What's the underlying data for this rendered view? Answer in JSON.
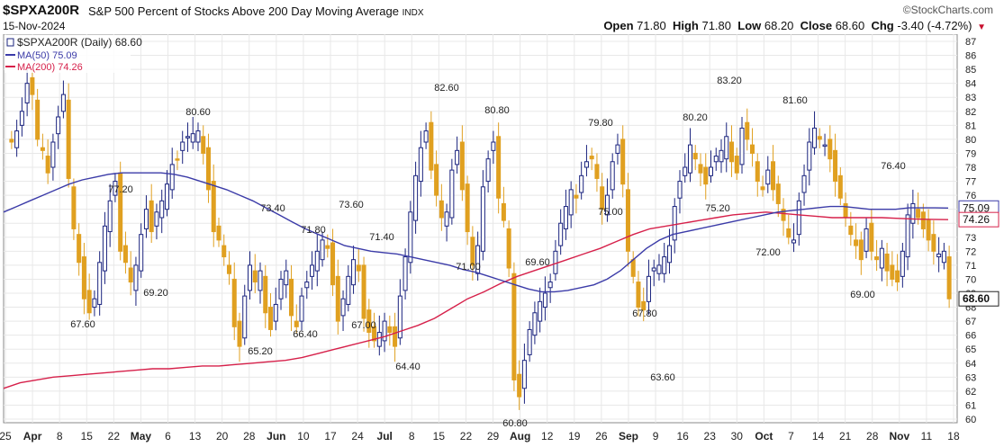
{
  "header": {
    "symbol": "$SPXA200R",
    "description": "S&P 500 Percent of Stocks Above 200 Day Moving Average",
    "exchange": "INDX",
    "date": "15-Nov-2024",
    "logo": "©StockCharts.com",
    "open_label": "Open",
    "open": "71.80",
    "high_label": "High",
    "high": "71.80",
    "low_label": "Low",
    "low": "68.20",
    "close_label": "Close",
    "close": "68.60",
    "chg_label": "Chg",
    "chg": "-3.40 (-4.72%)"
  },
  "legend": {
    "main": "$SPXA200R (Daily) 68.60",
    "ma50": "MA(50) 75.09",
    "ma200": "MA(200) 74.26"
  },
  "colors": {
    "up": "#1a237e",
    "down": "#e0a020",
    "ma50": "#3b3ba8",
    "ma200": "#d6204a",
    "grid": "#e8e8e8"
  },
  "chart_data": {
    "type": "candlestick",
    "ylim": [
      60,
      87
    ],
    "y_ticks": [
      60,
      61,
      62,
      63,
      64,
      65,
      66,
      67,
      68,
      69,
      70,
      71,
      72,
      73,
      74,
      75,
      76,
      77,
      78,
      79,
      80,
      81,
      82,
      83,
      84,
      85,
      86,
      87
    ],
    "x_tick_labels": [
      "25",
      "Apr",
      "8",
      "15",
      "22",
      "May",
      "6",
      "13",
      "20",
      "28",
      "Jun",
      "10",
      "17",
      "24",
      "Jul",
      "8",
      "15",
      "22",
      "29",
      "Aug",
      "12",
      "19",
      "26",
      "Sep",
      "9",
      "16",
      "23",
      "30",
      "Oct",
      "7",
      "14",
      "21",
      "28",
      "Nov",
      "11",
      "18"
    ],
    "last_value_label": "68.60",
    "ma50_value_label": "75.09",
    "ma200_value_label": "74.26",
    "annotations": [
      "67.60",
      "77.20",
      "69.20",
      "80.60",
      "73.40",
      "65.20",
      "71.80",
      "66.40",
      "73.60",
      "67.00",
      "71.40",
      "64.40",
      "82.60",
      "71.00",
      "80.80",
      "60.80",
      "69.60",
      "79.80",
      "75.00",
      "67.80",
      "63.60",
      "80.20",
      "75.20",
      "83.20",
      "72.00",
      "81.60",
      "76.40",
      "69.00"
    ],
    "close_series": [
      79.8,
      80.6,
      82.0,
      84.0,
      83.2,
      80.0,
      79.2,
      77.6,
      79.8,
      81.6,
      83.2,
      77.2,
      73.6,
      71.2,
      68.6,
      67.6,
      68.6,
      71.2,
      73.8,
      75.6,
      77.0,
      72.0,
      71.2,
      69.8,
      71.0,
      73.2,
      75.0,
      73.4,
      74.8,
      75.6,
      76.8,
      78.2,
      78.6,
      79.8,
      80.2,
      80.4,
      80.6,
      79.0,
      76.4,
      73.4,
      72.8,
      71.6,
      70.4,
      66.6,
      65.2,
      68.8,
      71.0,
      69.8,
      70.6,
      67.6,
      66.4,
      68.2,
      70.0,
      70.6,
      67.4,
      66.6,
      68.8,
      69.8,
      71.0,
      72.0,
      72.8,
      72.2,
      69.6,
      67.0,
      68.6,
      70.2,
      71.4,
      70.6,
      67.2,
      66.2,
      65.6,
      66.2,
      67.0,
      66.2,
      65.2,
      68.8,
      71.6,
      74.8,
      77.4,
      79.4,
      80.6,
      77.8,
      76.0,
      74.4,
      74.8,
      77.8,
      79.2,
      76.4,
      73.4,
      71.0,
      72.4,
      76.6,
      78.6,
      79.8,
      75.8,
      74.2,
      70.8,
      62.8,
      61.6,
      64.2,
      66.4,
      67.6,
      68.4,
      69.0,
      69.8,
      72.0,
      74.0,
      75.2,
      76.4,
      75.8,
      77.4,
      78.4,
      78.6,
      77.2,
      75.0,
      76.0,
      78.4,
      79.6,
      76.8,
      72.0,
      70.2,
      68.0,
      67.8,
      70.2,
      70.8,
      71.0,
      71.6,
      72.4,
      75.2,
      77.0,
      78.0,
      79.6,
      78.6,
      77.6,
      76.8,
      78.0,
      78.8,
      79.2,
      80.2,
      78.4,
      77.6,
      80.8,
      80.0,
      79.0,
      77.0,
      76.4,
      77.8,
      76.4,
      75.4,
      74.2,
      73.0,
      72.8,
      75.6,
      77.4,
      79.8,
      80.8,
      80.0,
      79.6,
      78.6,
      77.0,
      75.8,
      74.4,
      73.2,
      72.4,
      71.4,
      73.6,
      72.0,
      71.4,
      72.2,
      70.6,
      70.0,
      69.8,
      72.0,
      74.6,
      75.4,
      74.4,
      73.6,
      72.8,
      72.0,
      71.8,
      72.0,
      68.6
    ],
    "ma50_series": [
      74.8,
      75.2,
      75.6,
      76.0,
      76.4,
      76.8,
      77.1,
      77.3,
      77.5,
      77.6,
      77.6,
      77.6,
      77.6,
      77.5,
      77.3,
      77.0,
      76.7,
      76.4,
      76.0,
      75.6,
      75.1,
      74.6,
      74.1,
      73.6,
      73.2,
      72.8,
      72.4,
      72.2,
      72.0,
      71.9,
      71.8,
      71.6,
      71.4,
      71.2,
      71.0,
      70.7,
      70.5,
      70.2,
      69.9,
      69.6,
      69.3,
      69.1,
      69.1,
      69.2,
      69.4,
      69.6,
      70.0,
      70.6,
      71.4,
      72.2,
      72.8,
      73.2,
      73.4,
      73.6,
      73.8,
      74.0,
      74.2,
      74.4,
      74.6,
      74.8,
      74.9,
      75.0,
      75.1,
      75.2,
      75.2,
      75.1,
      75.0,
      75.0,
      75.0,
      75.1,
      75.1,
      75.1,
      75.09
    ],
    "ma200_series": [
      62.2,
      62.6,
      62.8,
      63.0,
      63.1,
      63.2,
      63.3,
      63.4,
      63.5,
      63.6,
      63.6,
      63.7,
      63.8,
      63.8,
      63.9,
      64.0,
      64.1,
      64.2,
      64.4,
      64.7,
      65.0,
      65.3,
      65.6,
      65.9,
      66.3,
      66.7,
      67.2,
      67.9,
      68.6,
      69.1,
      69.7,
      70.2,
      70.6,
      71.0,
      71.4,
      71.8,
      72.2,
      72.7,
      73.2,
      73.6,
      73.8,
      74.0,
      74.2,
      74.4,
      74.6,
      74.7,
      74.8,
      74.7,
      74.6,
      74.5,
      74.4,
      74.4,
      74.4,
      74.4,
      74.35,
      74.3,
      74.28,
      74.26
    ]
  }
}
